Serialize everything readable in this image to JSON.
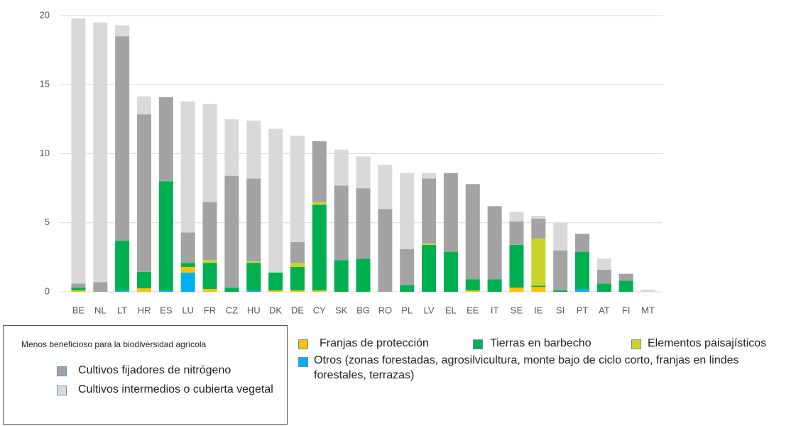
{
  "chart_data": {
    "type": "stacked_bar",
    "categories": [
      "BE",
      "NL",
      "LT",
      "HR",
      "ES",
      "LU",
      "FR",
      "CZ",
      "HU",
      "DK",
      "DE",
      "CY",
      "SK",
      "BG",
      "RO",
      "PL",
      "LV",
      "EL",
      "EE",
      "IT",
      "SE",
      "IE",
      "SI",
      "PT",
      "AT",
      "FI",
      "MT"
    ],
    "ylim": [
      0,
      20
    ],
    "yticks": [
      0,
      5,
      10,
      15,
      20
    ],
    "grid": true,
    "legend_heading": "Menos beneficioso para la biodiversidad agrícola",
    "series": [
      {
        "name": "Otros (zonas forestadas, agrosilvicultura, monte bajo de ciclo corto, franjas en lindes forestales, terrazas)",
        "color": "#00b0f0",
        "values": [
          0,
          0,
          0.1,
          0,
          0.1,
          1.4,
          0,
          0,
          0.1,
          0,
          0,
          0,
          0,
          0,
          0,
          0,
          0,
          0,
          0,
          0,
          0,
          0,
          0,
          0.2,
          0,
          0,
          0
        ]
      },
      {
        "name": "Franjas de protección",
        "color": "#ffc000",
        "values": [
          0.1,
          0,
          0,
          0.25,
          0,
          0.4,
          0.2,
          0,
          0,
          0.1,
          0.1,
          0.1,
          0,
          0,
          0,
          0,
          0,
          0,
          0.1,
          0,
          0.3,
          0.35,
          0,
          0,
          0,
          0,
          0
        ]
      },
      {
        "name": "Tierras en barbecho",
        "color": "#00b050",
        "values": [
          0.2,
          0,
          3.6,
          1.2,
          7.9,
          0.3,
          1.9,
          0.3,
          2.0,
          1.3,
          1.7,
          6.2,
          2.3,
          2.4,
          0,
          0.5,
          3.4,
          2.9,
          0.8,
          0.9,
          3.1,
          0.1,
          0.1,
          2.7,
          0.6,
          0.8,
          0
        ]
      },
      {
        "name": "Elementos paisajísticos",
        "color": "#c9d52b",
        "values": [
          0,
          0,
          0,
          0,
          0,
          0,
          0.2,
          0,
          0.1,
          0,
          0.3,
          0.2,
          0,
          0,
          0,
          0,
          0.1,
          0,
          0,
          0,
          0,
          3.4,
          0,
          0,
          0,
          0,
          0
        ]
      },
      {
        "name": "Cultivos fijadores de nitrógeno",
        "color": "#a3a3a3",
        "values": [
          0.3,
          0.7,
          14.8,
          11.4,
          6.1,
          2.2,
          4.2,
          8.1,
          6.0,
          0,
          1.5,
          4.4,
          5.4,
          5.1,
          6.0,
          2.6,
          4.7,
          5.7,
          6.9,
          5.3,
          1.7,
          1.45,
          2.9,
          1.3,
          1.0,
          0.5,
          0
        ]
      },
      {
        "name": "Cultivos intermedios o cubierta vegetal",
        "color": "#d9d9d9",
        "values": [
          19.2,
          18.8,
          0.8,
          1.3,
          0,
          9.5,
          7.1,
          4.1,
          4.2,
          10.4,
          7.7,
          0,
          2.6,
          2.3,
          3.2,
          5.5,
          0.4,
          0,
          0,
          0,
          0.7,
          0.2,
          2.0,
          0,
          0.8,
          0,
          0.15
        ]
      }
    ]
  }
}
